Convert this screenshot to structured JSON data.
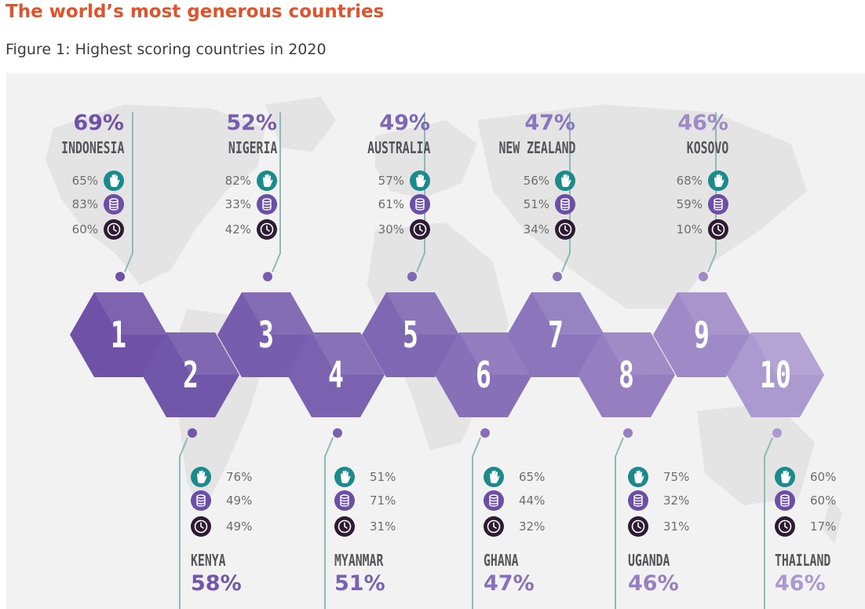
{
  "title": "The world’s most generous countries",
  "subtitle": "Figure 1: Highest scoring countries in 2020",
  "metric_icons": [
    "helped-stranger-hand-icon",
    "donated-money-coins-icon",
    "volunteered-time-clock-icon"
  ],
  "colors": {
    "title": "#e0532b",
    "hand_icon": "#1b8a8c",
    "coins_icon": "#6b4fa6",
    "clock_icon": "#2d1b34"
  },
  "countries": [
    {
      "rank": "1",
      "name": "INDONESIA",
      "score": "69%",
      "helping": "65%",
      "donating": "83%",
      "volunteering": "60%",
      "color": "#6f52a8"
    },
    {
      "rank": "2",
      "name": "KENYA",
      "score": "58%",
      "helping": "76%",
      "donating": "49%",
      "volunteering": "49%",
      "color": "#7157a9"
    },
    {
      "rank": "3",
      "name": "NIGERIA",
      "score": "52%",
      "helping": "82%",
      "donating": "33%",
      "volunteering": "42%",
      "color": "#765dad"
    },
    {
      "rank": "4",
      "name": "MYANMAR",
      "score": "51%",
      "helping": "51%",
      "donating": "71%",
      "volunteering": "31%",
      "color": "#7a62b0"
    },
    {
      "rank": "5",
      "name": "AUSTRALIA",
      "score": "49%",
      "helping": "57%",
      "donating": "61%",
      "volunteering": "30%",
      "color": "#7e67b3"
    },
    {
      "rank": "6",
      "name": "GHANA",
      "score": "47%",
      "helping": "65%",
      "donating": "44%",
      "volunteering": "32%",
      "color": "#8770b8"
    },
    {
      "rank": "7",
      "name": "NEW ZEALAND",
      "score": "47%",
      "helping": "56%",
      "donating": "51%",
      "volunteering": "34%",
      "color": "#8b76bb"
    },
    {
      "rank": "8",
      "name": "UGANDA",
      "score": "46%",
      "helping": "75%",
      "donating": "32%",
      "volunteering": "31%",
      "color": "#957fc1"
    },
    {
      "rank": "9",
      "name": "KOSOVO",
      "score": "46%",
      "helping": "68%",
      "donating": "59%",
      "volunteering": "10%",
      "color": "#9d8ac6"
    },
    {
      "rank": "10",
      "name": "THAILAND",
      "score": "46%",
      "helping": "60%",
      "donating": "60%",
      "volunteering": "17%",
      "color": "#ab9ad0"
    }
  ]
}
